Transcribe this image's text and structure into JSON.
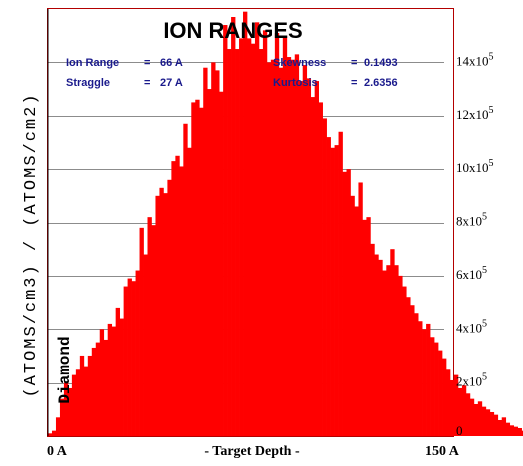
{
  "chart_data": {
    "type": "bar",
    "title": "ION RANGES",
    "stats": {
      "ion_range_label": "Ion Range",
      "ion_range_eq": "=",
      "ion_range_value": "66 A",
      "straggle_label": "Straggle",
      "straggle_eq": "=",
      "straggle_value": "27 A",
      "skewness_label": "Skewness",
      "skewness_eq": "=",
      "skewness_value": "0.1493",
      "kurtosis_label": "Kurtosis",
      "kurtosis_eq": "=",
      "kurtosis_value": "2.6356"
    },
    "ylabel": "(ATOMS/cm3) / (ATOMS/cm2)",
    "xlabel": "- Target Depth -",
    "x_start_label": "0 A",
    "x_end_label": "150 A",
    "material_label": "Diamond",
    "xlim": [
      0,
      150
    ],
    "ylim": [
      0,
      1600000
    ],
    "y_ticks": [
      {
        "base": "14x10",
        "exp": "5",
        "value": 1400000
      },
      {
        "base": "12x10",
        "exp": "5",
        "value": 1200000
      },
      {
        "base": "10x10",
        "exp": "5",
        "value": 1000000
      },
      {
        "base": "8x10",
        "exp": "5",
        "value": 800000
      },
      {
        "base": "6x10",
        "exp": "5",
        "value": 600000
      },
      {
        "base": "4x10",
        "exp": "5",
        "value": 400000
      },
      {
        "base": "2x10",
        "exp": "5",
        "value": 200000
      },
      {
        "base": "0",
        "exp": "",
        "value": 0
      }
    ],
    "grid": true,
    "series_color": "#ff0000",
    "bin_width": 1.5,
    "values": [
      10000,
      20000,
      70000,
      140000,
      200000,
      180000,
      230000,
      250000,
      300000,
      260000,
      300000,
      330000,
      350000,
      400000,
      360000,
      420000,
      410000,
      480000,
      440000,
      560000,
      590000,
      580000,
      620000,
      780000,
      680000,
      820000,
      790000,
      900000,
      930000,
      910000,
      960000,
      1030000,
      1050000,
      1010000,
      1170000,
      1080000,
      1250000,
      1260000,
      1230000,
      1380000,
      1300000,
      1400000,
      1370000,
      1290000,
      1540000,
      1450000,
      1570000,
      1450000,
      1490000,
      1590000,
      1490000,
      1470000,
      1550000,
      1450000,
      1520000,
      1400000,
      1410000,
      1510000,
      1380000,
      1500000,
      1420000,
      1410000,
      1430000,
      1330000,
      1390000,
      1340000,
      1270000,
      1330000,
      1250000,
      1190000,
      1120000,
      1080000,
      1090000,
      1140000,
      990000,
      1000000,
      900000,
      860000,
      950000,
      810000,
      820000,
      720000,
      680000,
      660000,
      620000,
      640000,
      700000,
      640000,
      600000,
      560000,
      520000,
      490000,
      460000,
      430000,
      400000,
      420000,
      370000,
      350000,
      320000,
      290000,
      250000,
      210000,
      230000,
      180000,
      190000,
      160000,
      140000,
      120000,
      130000,
      110000,
      100000,
      90000,
      80000,
      60000,
      70000,
      50000,
      40000,
      35000,
      30000,
      20000
    ]
  }
}
